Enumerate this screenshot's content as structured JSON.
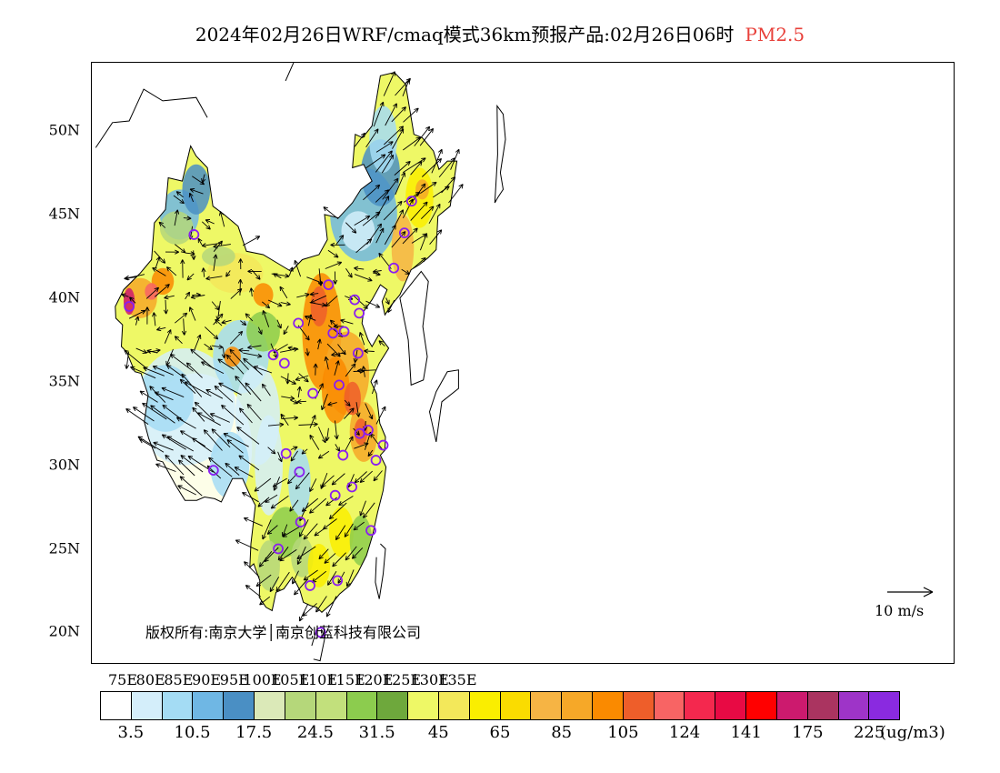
{
  "title": {
    "text": "2024年02月26日WRF/cmaq模式36km预报产品:02月26日06时",
    "variable": "PM2.5"
  },
  "map": {
    "lat_labels": [
      "50N",
      "45N",
      "40N",
      "35N",
      "30N",
      "25N",
      "20N"
    ],
    "lat_values": [
      50,
      45,
      40,
      35,
      30,
      25,
      20
    ],
    "lon_labels": [
      "75E",
      "80E",
      "85E",
      "90E",
      "95E",
      "100E",
      "105E",
      "110E",
      "115E",
      "120E",
      "125E",
      "130E",
      "135E"
    ],
    "lon_values": [
      75,
      80,
      85,
      90,
      95,
      100,
      105,
      110,
      115,
      120,
      125,
      130,
      135
    ],
    "copyright": "版权所有:南京大学│南京创蓝科技有限公司",
    "wind_scale_label": "10 m/s",
    "stations": [
      {
        "lon": 76.0,
        "lat": 39.5
      },
      {
        "lon": 87.6,
        "lat": 43.8
      },
      {
        "lon": 91.1,
        "lat": 29.7
      },
      {
        "lon": 101.8,
        "lat": 36.6
      },
      {
        "lon": 103.8,
        "lat": 36.1
      },
      {
        "lon": 106.3,
        "lat": 38.5
      },
      {
        "lon": 111.7,
        "lat": 40.8
      },
      {
        "lon": 112.5,
        "lat": 37.9
      },
      {
        "lon": 114.5,
        "lat": 38.0
      },
      {
        "lon": 116.4,
        "lat": 39.9
      },
      {
        "lon": 117.2,
        "lat": 39.1
      },
      {
        "lon": 117.0,
        "lat": 36.7
      },
      {
        "lon": 113.6,
        "lat": 34.8
      },
      {
        "lon": 108.9,
        "lat": 34.3
      },
      {
        "lon": 117.3,
        "lat": 31.9
      },
      {
        "lon": 118.8,
        "lat": 32.1
      },
      {
        "lon": 120.2,
        "lat": 30.3
      },
      {
        "lon": 121.5,
        "lat": 31.2
      },
      {
        "lon": 114.3,
        "lat": 30.6
      },
      {
        "lon": 112.9,
        "lat": 28.2
      },
      {
        "lon": 115.9,
        "lat": 28.7
      },
      {
        "lon": 119.3,
        "lat": 26.1
      },
      {
        "lon": 113.3,
        "lat": 23.1
      },
      {
        "lon": 108.4,
        "lat": 22.8
      },
      {
        "lon": 110.3,
        "lat": 20.0
      },
      {
        "lon": 106.7,
        "lat": 26.6
      },
      {
        "lon": 102.7,
        "lat": 25.0
      },
      {
        "lon": 104.1,
        "lat": 30.7
      },
      {
        "lon": 106.5,
        "lat": 29.6
      },
      {
        "lon": 123.4,
        "lat": 41.8
      },
      {
        "lon": 125.3,
        "lat": 43.9
      },
      {
        "lon": 126.6,
        "lat": 45.8
      }
    ]
  },
  "colorbar": {
    "colors": [
      "#ffffff",
      "#d4eefa",
      "#a4dcf4",
      "#6fb7e4",
      "#4a8fc4",
      "#dbe9b8",
      "#b5d77a",
      "#c2e07c",
      "#8ccc4e",
      "#6ea83c",
      "#eef866",
      "#f3e85a",
      "#faee00",
      "#fadc00",
      "#f6b444",
      "#f6a828",
      "#fa8a00",
      "#ee5e2a",
      "#f86464",
      "#f4284e",
      "#e80a44",
      "#ff0000",
      "#cc1a6e",
      "#aa3460",
      "#9e34c8",
      "#8a2ae0"
    ],
    "tick_labels": [
      "3.5",
      "10.5",
      "17.5",
      "24.5",
      "31.5",
      "45",
      "65",
      "85",
      "105",
      "124",
      "141",
      "175",
      "225"
    ],
    "unit": "(ug/m3)"
  },
  "colors": {
    "title_variable": "#e8403a",
    "station_marker": "#8a1ef0",
    "coastline": "#000000"
  }
}
